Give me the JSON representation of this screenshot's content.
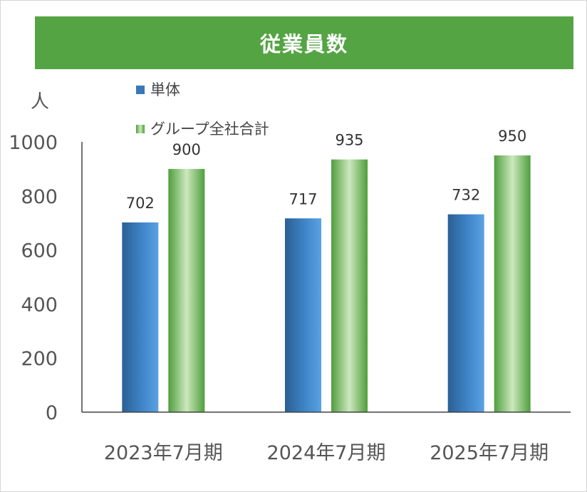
{
  "chart_data": {
    "type": "bar",
    "title": "従業員数",
    "unit_label": "人",
    "categories": [
      "2023年7月期",
      "2024年7月期",
      "2025年7月期"
    ],
    "series": [
      {
        "name": "単体",
        "values": [
          702,
          717,
          732
        ],
        "color": "#3a78b8"
      },
      {
        "name": "グループ全社合計",
        "values": [
          900,
          935,
          950
        ],
        "color": "#4f9e3c"
      }
    ],
    "ylim": [
      0,
      1000
    ],
    "yticks": [
      0,
      200,
      400,
      600,
      800,
      1000
    ],
    "legend_position": "top-left",
    "grid": false,
    "data_labels": true
  }
}
